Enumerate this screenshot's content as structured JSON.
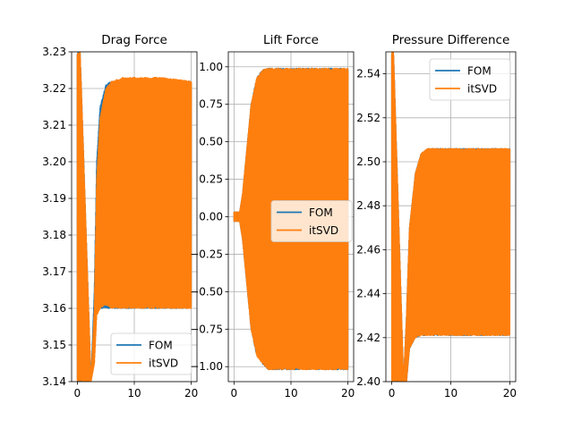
{
  "figure": {
    "background": "#ffffff",
    "grid": true,
    "series_colors": {
      "FOM": "#1f77b4",
      "itSVD": "#ff7f0e"
    }
  },
  "chart_data": [
    {
      "type": "line",
      "title": "Drag Force",
      "xlabel": "",
      "ylabel": "",
      "xlim": [
        -1,
        21
      ],
      "ylim": [
        3.14,
        3.23
      ],
      "xticks": [
        0,
        10,
        20
      ],
      "xtick_labels": [
        "0",
        "10",
        "20"
      ],
      "yticks": [
        3.14,
        3.15,
        3.16,
        3.17,
        3.18,
        3.19,
        3.2,
        3.21,
        3.22,
        3.23
      ],
      "ytick_labels": [
        "3.14",
        "3.15",
        "3.16",
        "3.17",
        "3.18",
        "3.19",
        "3.20",
        "3.21",
        "3.22",
        "3.23"
      ],
      "grid": true,
      "legend": {
        "location": "lower right",
        "entries": [
          "FOM",
          "itSVD"
        ]
      },
      "series": [
        {
          "name": "FOM",
          "color": "#1f77b4",
          "x": [
            0,
            0.5,
            2.4,
            3.0,
            3.4,
            4.0,
            5.0,
            6.0,
            8.0,
            10.0,
            15.0,
            20.0
          ],
          "upper": [
            3.23,
            3.23,
            3.14,
            3.165,
            3.2,
            3.215,
            3.221,
            3.222,
            3.222,
            3.222,
            3.222,
            3.222
          ],
          "lower": [
            3.14,
            3.14,
            3.14,
            3.163,
            3.16,
            3.16,
            3.16,
            3.16,
            3.16,
            3.16,
            3.16,
            3.16
          ]
        },
        {
          "name": "itSVD",
          "color": "#ff7f0e",
          "x": [
            0,
            0.5,
            2.4,
            3.0,
            3.4,
            4.0,
            5.0,
            6.0,
            8.0,
            10.0,
            15.0,
            20.0
          ],
          "upper": [
            3.23,
            3.23,
            3.14,
            3.16,
            3.195,
            3.212,
            3.22,
            3.222,
            3.223,
            3.223,
            3.223,
            3.222
          ],
          "lower": [
            3.14,
            3.14,
            3.14,
            3.145,
            3.158,
            3.16,
            3.161,
            3.16,
            3.16,
            3.16,
            3.16,
            3.16
          ]
        }
      ]
    },
    {
      "type": "line",
      "title": "Lift Force",
      "xlabel": "",
      "ylabel": "",
      "xlim": [
        -1,
        21
      ],
      "ylim": [
        -1.1,
        1.1
      ],
      "xticks": [
        0,
        10,
        20
      ],
      "xtick_labels": [
        "0",
        "10",
        "20"
      ],
      "yticks": [
        -1.0,
        -0.75,
        -0.5,
        -0.25,
        0.0,
        0.25,
        0.5,
        0.75,
        1.0
      ],
      "ytick_labels": [
        "−1.00",
        "−0.75",
        "−0.50",
        "−0.25",
        "0.00",
        "0.25",
        "0.50",
        "0.75",
        "1.00"
      ],
      "grid": true,
      "legend": {
        "location": "center right",
        "entries": [
          "FOM",
          "itSVD"
        ]
      },
      "series": [
        {
          "name": "FOM",
          "color": "#1f77b4",
          "x": [
            0,
            1.0,
            1.5,
            2.0,
            3.0,
            4.0,
            5.0,
            6.0,
            10.0,
            20.0
          ],
          "upper": [
            0.03,
            0.03,
            0.15,
            0.35,
            0.75,
            0.93,
            0.98,
            0.99,
            0.99,
            0.99
          ],
          "lower": [
            -0.03,
            -0.03,
            -0.15,
            -0.35,
            -0.75,
            -0.93,
            -0.98,
            -1.02,
            -1.02,
            -1.02
          ]
        },
        {
          "name": "itSVD",
          "color": "#ff7f0e",
          "x": [
            0,
            1.0,
            1.5,
            2.0,
            3.0,
            4.0,
            5.0,
            6.0,
            10.0,
            20.0
          ],
          "upper": [
            0.03,
            0.03,
            0.15,
            0.35,
            0.75,
            0.93,
            0.98,
            0.99,
            0.99,
            0.99
          ],
          "lower": [
            -0.03,
            -0.03,
            -0.15,
            -0.35,
            -0.75,
            -0.93,
            -0.98,
            -1.02,
            -1.02,
            -1.02
          ]
        }
      ]
    },
    {
      "type": "line",
      "title": "Pressure Difference",
      "xlabel": "",
      "ylabel": "",
      "xlim": [
        -1,
        21
      ],
      "ylim": [
        2.4,
        2.55
      ],
      "xticks": [
        0,
        10,
        20
      ],
      "xtick_labels": [
        "0",
        "10",
        "20"
      ],
      "yticks": [
        2.4,
        2.42,
        2.44,
        2.46,
        2.48,
        2.5,
        2.52,
        2.54
      ],
      "ytick_labels": [
        "2.40",
        "2.42",
        "2.44",
        "2.46",
        "2.48",
        "2.50",
        "2.52",
        "2.54"
      ],
      "grid": true,
      "legend": {
        "location": "upper right",
        "entries": [
          "FOM",
          "itSVD"
        ]
      },
      "series": [
        {
          "name": "FOM",
          "color": "#1f77b4",
          "x": [
            0,
            0.3,
            2.0,
            2.5,
            3.0,
            4.0,
            5.0,
            6.0,
            10.0,
            20.0
          ],
          "upper": [
            2.55,
            2.55,
            2.4,
            2.43,
            2.47,
            2.495,
            2.504,
            2.506,
            2.506,
            2.506
          ],
          "lower": [
            2.4,
            2.4,
            2.4,
            2.4,
            2.415,
            2.42,
            2.421,
            2.421,
            2.421,
            2.421
          ]
        },
        {
          "name": "itSVD",
          "color": "#ff7f0e",
          "x": [
            0,
            0.3,
            2.0,
            2.5,
            3.0,
            4.0,
            5.0,
            6.0,
            10.0,
            20.0
          ],
          "upper": [
            2.55,
            2.55,
            2.4,
            2.43,
            2.47,
            2.495,
            2.504,
            2.506,
            2.506,
            2.506
          ],
          "lower": [
            2.4,
            2.4,
            2.4,
            2.4,
            2.415,
            2.42,
            2.421,
            2.421,
            2.421,
            2.421
          ]
        }
      ]
    }
  ]
}
